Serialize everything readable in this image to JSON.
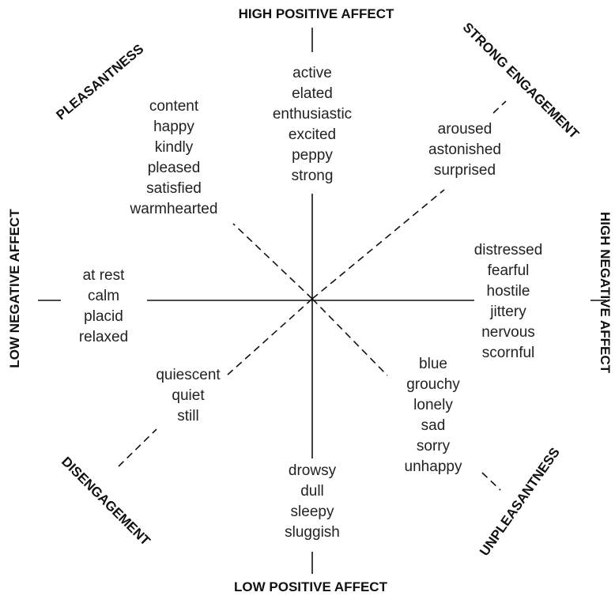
{
  "axes": {
    "top": "HIGH POSITIVE AFFECT",
    "bottom": "LOW POSITIVE AFFECT",
    "left": "LOW NEGATIVE AFFECT",
    "right": "HIGH NEGATIVE AFFECT",
    "upper_left": "PLEASANTNESS",
    "upper_right": "STRONG ENGAGEMENT",
    "lower_left": "DISENGAGEMENT",
    "lower_right": "UNPLEASANTNESS"
  },
  "groups": {
    "top": [
      "active",
      "elated",
      "enthusiastic",
      "excited",
      "peppy",
      "strong"
    ],
    "upper_left": [
      "content",
      "happy",
      "kindly",
      "pleased",
      "satisfied",
      "warmhearted"
    ],
    "upper_right": [
      "aroused",
      "astonished",
      "surprised"
    ],
    "right": [
      "distressed",
      "fearful",
      "hostile",
      "jittery",
      "nervous",
      "scornful"
    ],
    "left": [
      "at rest",
      "calm",
      "placid",
      "relaxed"
    ],
    "lower_left": [
      "quiescent",
      "quiet",
      "still"
    ],
    "bottom": [
      "drowsy",
      "dull",
      "sleepy",
      "sluggish"
    ],
    "lower_right": [
      "blue",
      "grouchy",
      "lonely",
      "sad",
      "sorry",
      "unhappy"
    ]
  }
}
